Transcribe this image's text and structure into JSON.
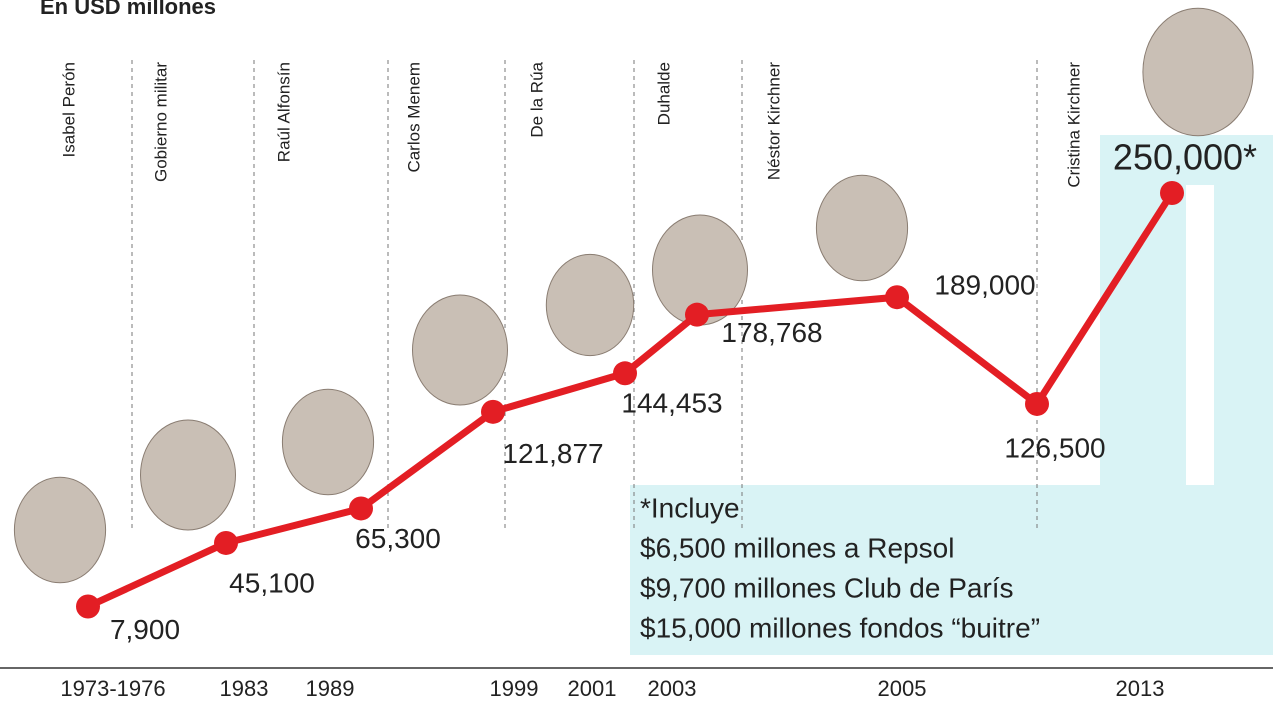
{
  "chart_data": {
    "type": "line",
    "title": "En USD millones",
    "categories": [
      "1973-1976",
      "1983",
      "1989",
      "1999",
      "2001",
      "2003",
      "2005",
      null,
      "2013"
    ],
    "series": [
      {
        "color": "#e31e24",
        "values": [
          7900,
          45100,
          65300,
          121877,
          144453,
          178768,
          189000,
          126500,
          250000
        ],
        "value_labels": [
          "7,900",
          "45,100",
          "65,300",
          "121,877",
          "144,453",
          "178,768",
          "189,000",
          "126,500",
          "250,000*"
        ]
      }
    ],
    "annotations": [
      "Isabel Perón",
      "Gobierno militar",
      "Raúl Alfonsín",
      "Carlos Menem",
      "De la Rúa",
      "Duhalde",
      "Néstor Kirchner",
      "Cristina Kirchner"
    ],
    "note": [
      "*Incluye",
      "$6,500 millones a Repsol",
      "$9,700 millones Club de París",
      "$15,000 millones fondos “buitre”"
    ]
  }
}
